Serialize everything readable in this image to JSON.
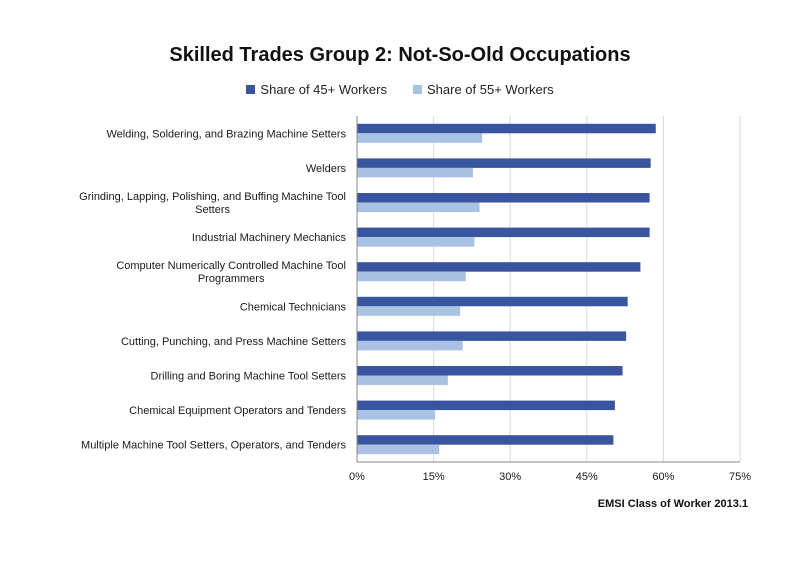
{
  "chart_data": {
    "type": "bar",
    "orientation": "horizontal",
    "title": "Skilled Trades Group 2: Not-So-Old Occupations",
    "source": "EMSI Class of Worker 2013.1",
    "legend_position": "top",
    "grid": true,
    "xlim": [
      0,
      75
    ],
    "x_ticks": [
      "0%",
      "15%",
      "30%",
      "45%",
      "60%",
      "75%"
    ],
    "x_tick_values": [
      0,
      15,
      30,
      45,
      60,
      75
    ],
    "categories": [
      [
        "Welding, Soldering, and Brazing Machine Setters"
      ],
      [
        "Welders"
      ],
      [
        "Grinding, Lapping, Polishing, and Buffing Machine Tool",
        "Setters"
      ],
      [
        "Industrial Machinery Mechanics"
      ],
      [
        "Computer Numerically Controlled Machine Tool",
        "Programmers"
      ],
      [
        "Chemical Technicians"
      ],
      [
        "Cutting, Punching, and Press Machine Setters"
      ],
      [
        "Drilling and Boring Machine Tool Setters"
      ],
      [
        "Chemical Equipment Operators and Tenders"
      ],
      [
        "Multiple Machine Tool Setters, Operators, and Tenders"
      ]
    ],
    "series": [
      {
        "name": "Share of 45+ Workers",
        "color": "#3a55a0",
        "values": [
          58.5,
          57.5,
          57.3,
          57.3,
          55.5,
          53,
          52.7,
          52,
          50.5,
          50.2
        ]
      },
      {
        "name": "Share of 55+ Workers",
        "color": "#a9c1e3",
        "values": [
          24.5,
          22.7,
          24,
          23,
          21.3,
          20.2,
          20.7,
          17.8,
          15.3,
          16.1
        ]
      }
    ]
  }
}
